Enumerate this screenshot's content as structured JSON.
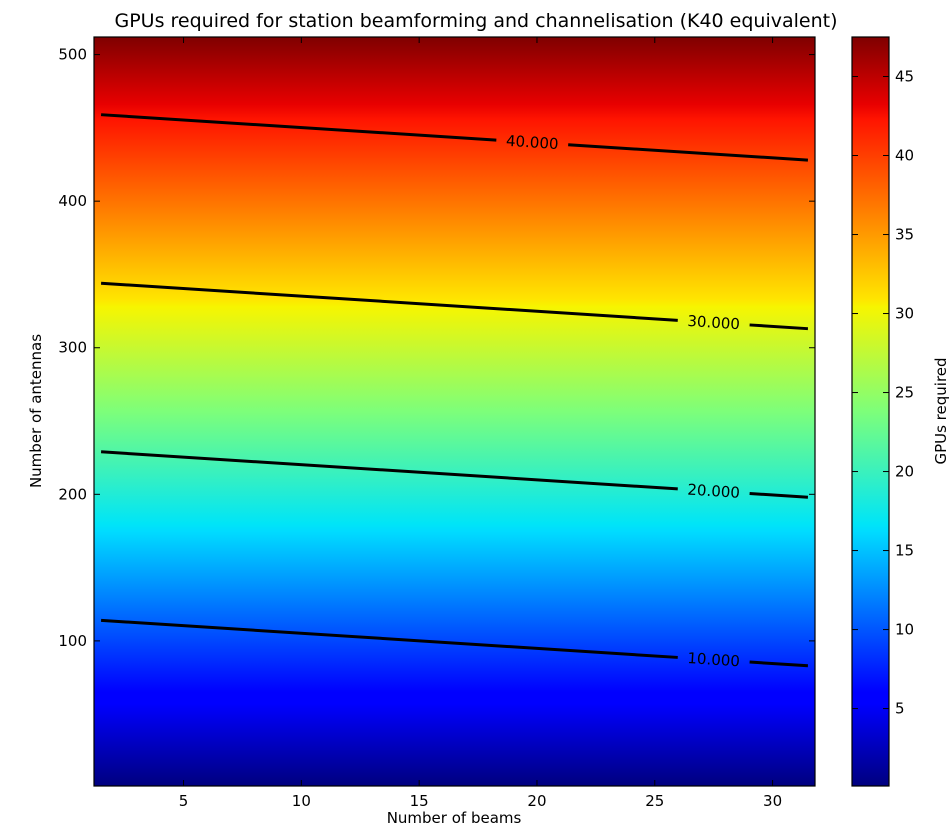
{
  "chart_data": {
    "type": "heatmap",
    "title": "GPUs required for station beamforming and channelisation (K40 equivalent)",
    "xlabel": "Number of beams",
    "ylabel": "Number of antennas",
    "xlim": [
      1.2,
      31.8
    ],
    "ylim": [
      1,
      512
    ],
    "x_ticks": [
      5,
      10,
      15,
      20,
      25,
      30
    ],
    "y_ticks": [
      100,
      200,
      300,
      400,
      500
    ],
    "colormap": "jet",
    "colorbar": {
      "label": "GPUs required",
      "range": [
        0.1,
        47.5
      ],
      "ticks": [
        5,
        10,
        15,
        20,
        25,
        30,
        35,
        40,
        45
      ]
    },
    "contours": [
      {
        "level": 10,
        "label": "10.000",
        "points": [
          [
            1.5,
            114
          ],
          [
            31.5,
            83
          ]
        ],
        "label_x": 27.5
      },
      {
        "level": 20,
        "label": "20.000",
        "points": [
          [
            1.5,
            229
          ],
          [
            31.5,
            198
          ]
        ],
        "label_x": 27.5
      },
      {
        "level": 30,
        "label": "30.000",
        "points": [
          [
            1.5,
            344
          ],
          [
            31.5,
            313
          ]
        ],
        "label_x": 27.5
      },
      {
        "level": 40,
        "label": "40.000",
        "points": [
          [
            1.5,
            459
          ],
          [
            31.5,
            428
          ]
        ],
        "label_x": 19.8
      }
    ],
    "grid": false,
    "legend": "none"
  }
}
